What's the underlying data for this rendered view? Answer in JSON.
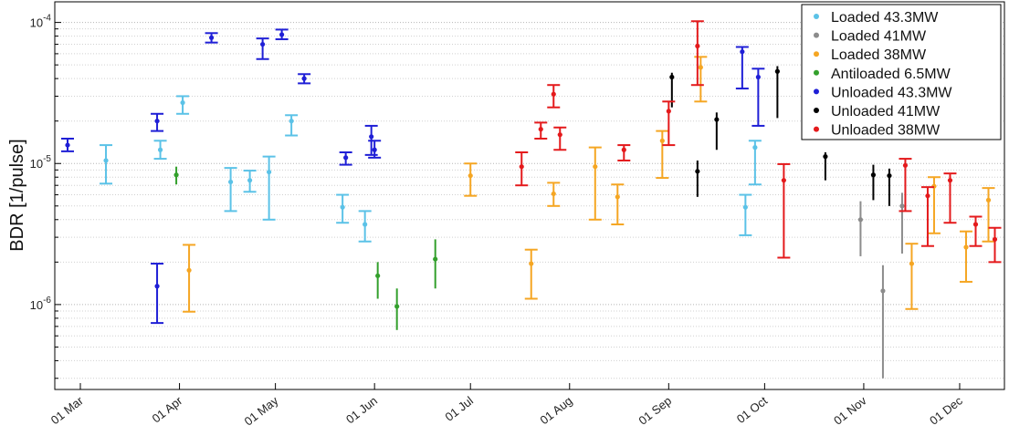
{
  "chart_data": {
    "type": "scatter",
    "title": "",
    "xlabel": "",
    "ylabel": "BDR [1/pulse]",
    "y_scale": "log",
    "y_range": [
      2.5e-07,
      0.00014
    ],
    "x_range": [
      "2016-02-22",
      "2016-12-15"
    ],
    "grid": {
      "major": true,
      "minor": true,
      "style": "dotted",
      "axis": "y"
    },
    "legend_position": "top-right",
    "x_ticks": [
      {
        "date": "2016-03-01",
        "label": "01 Mar"
      },
      {
        "date": "2016-04-01",
        "label": "01 Apr"
      },
      {
        "date": "2016-05-01",
        "label": "01 May"
      },
      {
        "date": "2016-06-01",
        "label": "01 Jun"
      },
      {
        "date": "2016-07-01",
        "label": "01 Jul"
      },
      {
        "date": "2016-08-01",
        "label": "01 Aug"
      },
      {
        "date": "2016-09-01",
        "label": "01 Sep"
      },
      {
        "date": "2016-10-01",
        "label": "01 Oct"
      },
      {
        "date": "2016-11-01",
        "label": "01 Nov"
      },
      {
        "date": "2016-12-01",
        "label": "01 Dec"
      }
    ],
    "y_ticks": [
      {
        "value": 1e-06,
        "base": "10",
        "exp": "-6"
      },
      {
        "value": 1e-05,
        "base": "10",
        "exp": "-5"
      },
      {
        "value": 0.0001,
        "base": "10",
        "exp": "-4"
      }
    ],
    "series": [
      {
        "name": "Loaded 43.3MW",
        "color": "#5bc2e7",
        "caps": true,
        "points": [
          {
            "date": "2016-03-09",
            "y": 1.05e-05,
            "lo": 7.2e-06,
            "hi": 1.35e-05
          },
          {
            "date": "2016-03-26",
            "y": 1.25e-05,
            "lo": 1.08e-05,
            "hi": 1.45e-05
          },
          {
            "date": "2016-04-02",
            "y": 2.7e-05,
            "lo": 2.25e-05,
            "hi": 3e-05
          },
          {
            "date": "2016-04-17",
            "y": 7.4e-06,
            "lo": 4.6e-06,
            "hi": 9.3e-06
          },
          {
            "date": "2016-04-23",
            "y": 7.6e-06,
            "lo": 6.3e-06,
            "hi": 8.9e-06
          },
          {
            "date": "2016-04-29",
            "y": 8.7e-06,
            "lo": 4e-06,
            "hi": 1.12e-05
          },
          {
            "date": "2016-05-06",
            "y": 2e-05,
            "lo": 1.58e-05,
            "hi": 2.2e-05
          },
          {
            "date": "2016-05-22",
            "y": 4.9e-06,
            "lo": 3.8e-06,
            "hi": 6e-06
          },
          {
            "date": "2016-05-29",
            "y": 3.7e-06,
            "lo": 2.8e-06,
            "hi": 4.6e-06
          },
          {
            "date": "2016-09-25",
            "y": 4.9e-06,
            "lo": 3.1e-06,
            "hi": 6e-06
          },
          {
            "date": "2016-09-28",
            "y": 1.3e-05,
            "lo": 7.1e-06,
            "hi": 1.45e-05
          }
        ]
      },
      {
        "name": "Loaded 41MW",
        "color": "#8c8c8c",
        "caps": false,
        "points": [
          {
            "date": "2016-10-31",
            "y": 4e-06,
            "lo": 2.2e-06,
            "hi": 5.4e-06
          },
          {
            "date": "2016-11-07",
            "y": 1.25e-06,
            "lo": 3e-07,
            "hi": 1.9e-06
          },
          {
            "date": "2016-11-13",
            "y": 5e-06,
            "lo": 2.3e-06,
            "hi": 6.2e-06
          }
        ]
      },
      {
        "name": "Loaded 38MW",
        "color": "#f5a623",
        "caps": true,
        "points": [
          {
            "date": "2016-04-04",
            "y": 1.75e-06,
            "lo": 8.9e-07,
            "hi": 2.65e-06
          },
          {
            "date": "2016-07-01",
            "y": 8.2e-06,
            "lo": 5.9e-06,
            "hi": 1e-05
          },
          {
            "date": "2016-07-20",
            "y": 1.95e-06,
            "lo": 1.1e-06,
            "hi": 2.45e-06
          },
          {
            "date": "2016-07-27",
            "y": 6.1e-06,
            "lo": 5e-06,
            "hi": 7.3e-06
          },
          {
            "date": "2016-08-09",
            "y": 9.5e-06,
            "lo": 4e-06,
            "hi": 1.3e-05
          },
          {
            "date": "2016-08-16",
            "y": 5.8e-06,
            "lo": 3.7e-06,
            "hi": 7.1e-06
          },
          {
            "date": "2016-08-30",
            "y": 1.45e-05,
            "lo": 7.9e-06,
            "hi": 1.7e-05
          },
          {
            "date": "2016-09-11",
            "y": 4.8e-05,
            "lo": 2.75e-05,
            "hi": 5.7e-05
          },
          {
            "date": "2016-11-16",
            "y": 1.95e-06,
            "lo": 9.3e-07,
            "hi": 2.7e-06
          },
          {
            "date": "2016-11-23",
            "y": 6.9e-06,
            "lo": 3.2e-06,
            "hi": 8e-06
          },
          {
            "date": "2016-12-03",
            "y": 2.55e-06,
            "lo": 1.45e-06,
            "hi": 3.3e-06
          },
          {
            "date": "2016-12-10",
            "y": 5.5e-06,
            "lo": 2.8e-06,
            "hi": 6.7e-06
          }
        ]
      },
      {
        "name": "Antiloaded 6.5MW",
        "color": "#33a02c",
        "caps": false,
        "points": [
          {
            "date": "2016-03-31",
            "y": 8.3e-06,
            "lo": 7.1e-06,
            "hi": 9.5e-06
          },
          {
            "date": "2016-06-02",
            "y": 1.6e-06,
            "lo": 1.1e-06,
            "hi": 2e-06
          },
          {
            "date": "2016-06-08",
            "y": 9.7e-07,
            "lo": 6.6e-07,
            "hi": 1.3e-06
          },
          {
            "date": "2016-06-20",
            "y": 2.1e-06,
            "lo": 1.3e-06,
            "hi": 2.9e-06
          }
        ]
      },
      {
        "name": "Unloaded 43.3MW",
        "color": "#1f1fd6",
        "caps": true,
        "points": [
          {
            "date": "2016-02-26",
            "y": 1.35e-05,
            "lo": 1.22e-05,
            "hi": 1.5e-05
          },
          {
            "date": "2016-03-25",
            "y": 2e-05,
            "lo": 1.7e-05,
            "hi": 2.25e-05
          },
          {
            "date": "2016-03-25",
            "y": 1.35e-06,
            "lo": 7.4e-07,
            "hi": 1.95e-06
          },
          {
            "date": "2016-04-11",
            "y": 7.8e-05,
            "lo": 7.2e-05,
            "hi": 8.4e-05
          },
          {
            "date": "2016-04-27",
            "y": 7e-05,
            "lo": 5.5e-05,
            "hi": 7.7e-05
          },
          {
            "date": "2016-05-03",
            "y": 8.2e-05,
            "lo": 7.6e-05,
            "hi": 8.9e-05
          },
          {
            "date": "2016-05-10",
            "y": 4e-05,
            "lo": 3.7e-05,
            "hi": 4.3e-05
          },
          {
            "date": "2016-05-23",
            "y": 1.1e-05,
            "lo": 9.8e-06,
            "hi": 1.2e-05
          },
          {
            "date": "2016-05-31",
            "y": 1.55e-05,
            "lo": 1.15e-05,
            "hi": 1.85e-05
          },
          {
            "date": "2016-06-01",
            "y": 1.25e-05,
            "lo": 1.1e-05,
            "hi": 1.45e-05
          },
          {
            "date": "2016-09-24",
            "y": 6.2e-05,
            "lo": 3.4e-05,
            "hi": 6.7e-05
          },
          {
            "date": "2016-09-29",
            "y": 4.1e-05,
            "lo": 1.85e-05,
            "hi": 4.7e-05
          }
        ]
      },
      {
        "name": "Unloaded 41MW",
        "color": "#000000",
        "caps": false,
        "points": [
          {
            "date": "2016-09-02",
            "y": 4.1e-05,
            "lo": 2.5e-05,
            "hi": 4.4e-05
          },
          {
            "date": "2016-09-10",
            "y": 8.8e-06,
            "lo": 5.8e-06,
            "hi": 1.05e-05
          },
          {
            "date": "2016-09-16",
            "y": 2.05e-05,
            "lo": 1.25e-05,
            "hi": 2.3e-05
          },
          {
            "date": "2016-10-05",
            "y": 4.5e-05,
            "lo": 2.1e-05,
            "hi": 4.9e-05
          },
          {
            "date": "2016-10-20",
            "y": 1.12e-05,
            "lo": 7.6e-06,
            "hi": 1.2e-05
          },
          {
            "date": "2016-11-04",
            "y": 8.3e-06,
            "lo": 5.5e-06,
            "hi": 9.8e-06
          },
          {
            "date": "2016-11-09",
            "y": 8.2e-06,
            "lo": 5e-06,
            "hi": 9.2e-06
          }
        ]
      },
      {
        "name": "Unloaded 38MW",
        "color": "#e41a1c",
        "caps": true,
        "points": [
          {
            "date": "2016-07-17",
            "y": 9.5e-06,
            "lo": 7e-06,
            "hi": 1.2e-05
          },
          {
            "date": "2016-07-23",
            "y": 1.75e-05,
            "lo": 1.5e-05,
            "hi": 1.95e-05
          },
          {
            "date": "2016-07-27",
            "y": 3.1e-05,
            "lo": 2.5e-05,
            "hi": 3.6e-05
          },
          {
            "date": "2016-07-29",
            "y": 1.6e-05,
            "lo": 1.25e-05,
            "hi": 1.8e-05
          },
          {
            "date": "2016-08-18",
            "y": 1.25e-05,
            "lo": 1.05e-05,
            "hi": 1.35e-05
          },
          {
            "date": "2016-09-01",
            "y": 2.35e-05,
            "lo": 1.35e-05,
            "hi": 2.75e-05
          },
          {
            "date": "2016-09-10",
            "y": 6.8e-05,
            "lo": 3.6e-05,
            "hi": 0.000102
          },
          {
            "date": "2016-10-07",
            "y": 7.6e-06,
            "lo": 2.15e-06,
            "hi": 9.9e-06
          },
          {
            "date": "2016-11-14",
            "y": 9.7e-06,
            "lo": 4.6e-06,
            "hi": 1.08e-05
          },
          {
            "date": "2016-11-21",
            "y": 5.9e-06,
            "lo": 2.6e-06,
            "hi": 6.8e-06
          },
          {
            "date": "2016-11-28",
            "y": 7.6e-06,
            "lo": 3.8e-06,
            "hi": 8.5e-06
          },
          {
            "date": "2016-12-06",
            "y": 3.7e-06,
            "lo": 2.6e-06,
            "hi": 4.2e-06
          },
          {
            "date": "2016-12-12",
            "y": 2.9e-06,
            "lo": 2e-06,
            "hi": 3.5e-06
          }
        ]
      }
    ]
  }
}
